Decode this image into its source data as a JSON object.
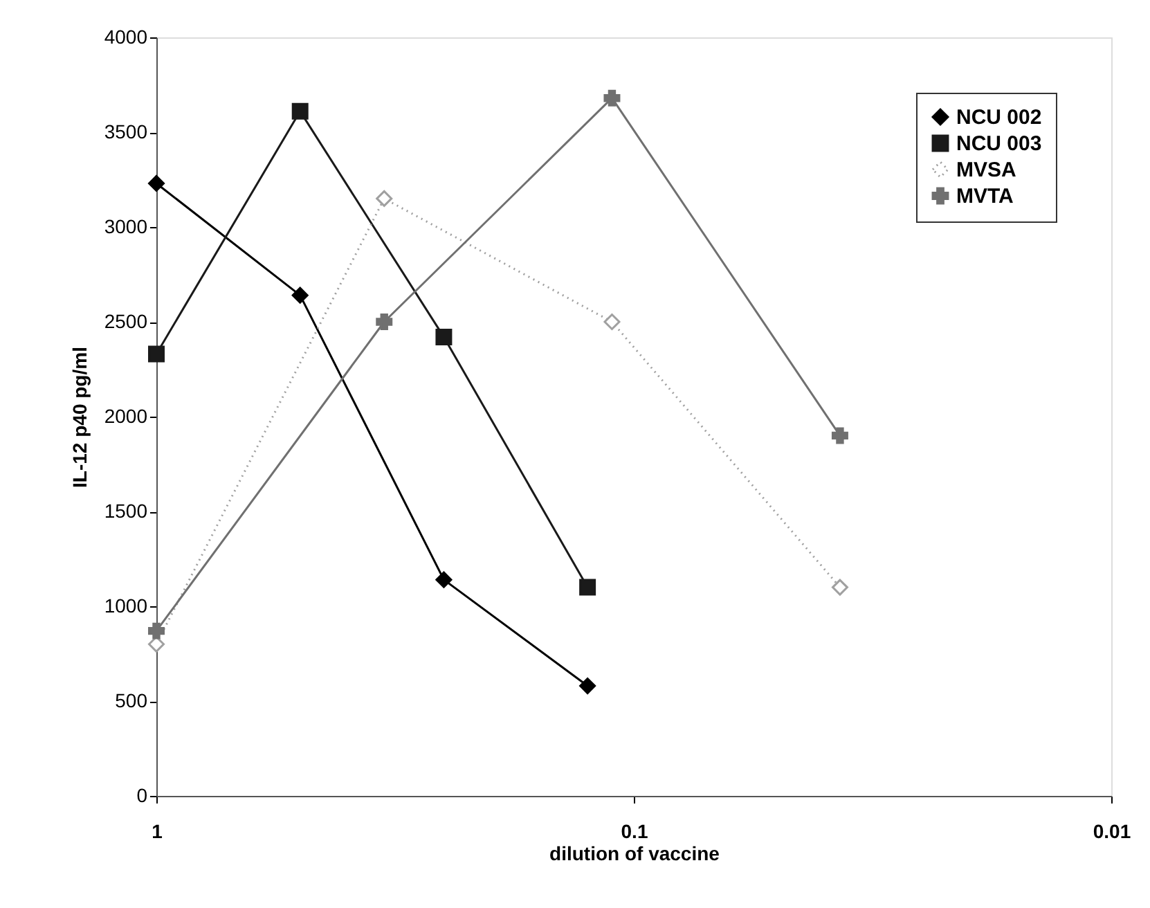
{
  "chart_data": {
    "type": "line",
    "xlabel": "dilution of vaccine",
    "ylabel": "IL-12 p40  pg/ml",
    "log": "x",
    "xlim": [
      1,
      0.01
    ],
    "xticks": [
      1,
      0.1,
      0.01
    ],
    "ylim": [
      0,
      4000
    ],
    "yticks": [
      0,
      500,
      {
        "value": 1000,
        "label": "1000"
      },
      {
        "value": 1500,
        "label": "1500"
      },
      {
        "value": 2000,
        "label": "2000"
      },
      {
        "value": 2500,
        "label": "2500"
      },
      {
        "value": 3000,
        "label": "3000"
      },
      {
        "value": 3500,
        "label": "3500"
      },
      {
        "value": 4000,
        "label": "4000"
      }
    ],
    "grid": false,
    "legend": "top right",
    "series": [
      {
        "name": "NCU 002",
        "color": "#000000",
        "marker": "diamond",
        "line_style": "solid",
        "x": [
          1,
          0.5,
          0.25,
          0.125
        ],
        "values": [
          3230,
          2640,
          1140,
          580
        ]
      },
      {
        "name": "NCU 003",
        "color": "#1a1a1a",
        "marker": "square",
        "line_style": "solid",
        "x": [
          1,
          0.5,
          0.25,
          0.125
        ],
        "values": [
          2330,
          3610,
          2420,
          1100
        ]
      },
      {
        "name": "MVSA",
        "color": "#a0a0a0",
        "marker": "diamond",
        "line_style": "dotted",
        "x": [
          1,
          0.3333,
          0.1111,
          0.037
        ],
        "values": [
          800,
          3150,
          2500,
          1100
        ]
      },
      {
        "name": "MVTA",
        "color": "#707070",
        "marker": "cross",
        "line_style": "solid",
        "x": [
          1,
          0.3333,
          0.1111,
          0.037
        ],
        "values": [
          870,
          2500,
          3680,
          1900
        ]
      }
    ]
  }
}
